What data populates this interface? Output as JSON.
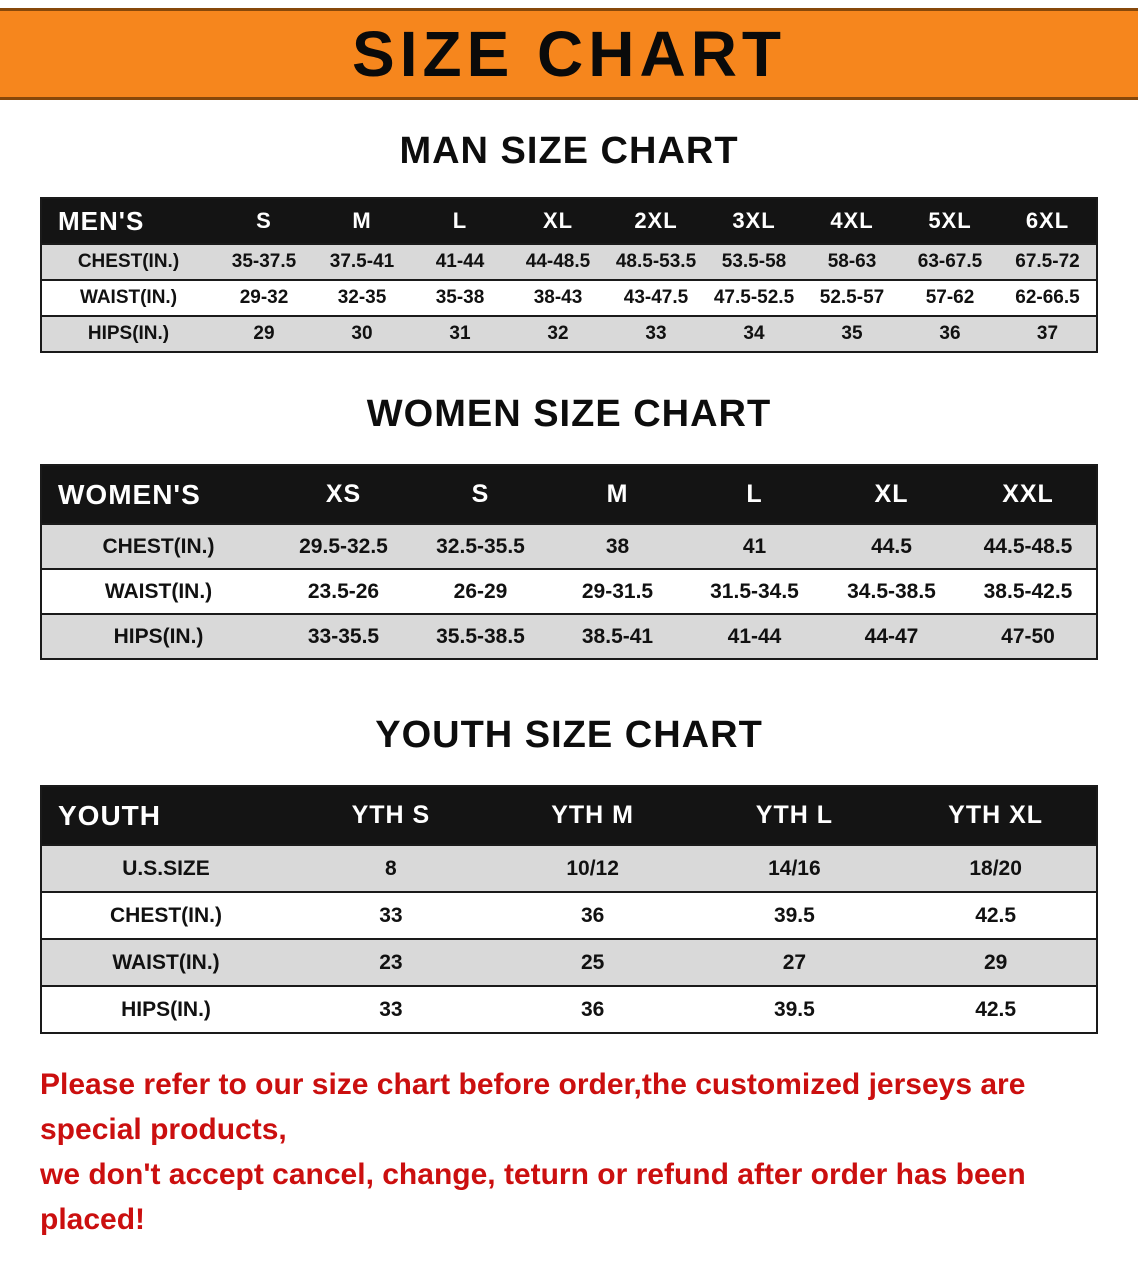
{
  "banner": {
    "title": "SIZE CHART"
  },
  "colors": {
    "banner_bg": "#f6861d",
    "table_header_bg": "#141414",
    "row_alt_bg": "#d9d9d9",
    "disclaimer_text": "#cb0f0f"
  },
  "sections": [
    {
      "heading": "MAN SIZE CHART",
      "table": {
        "header": [
          "MEN'S",
          "S",
          "M",
          "L",
          "XL",
          "2XL",
          "3XL",
          "4XL",
          "5XL",
          "6XL"
        ],
        "rows": [
          [
            "CHEST(IN.)",
            "35-37.5",
            "37.5-41",
            "41-44",
            "44-48.5",
            "48.5-53.5",
            "53.5-58",
            "58-63",
            "63-67.5",
            "67.5-72"
          ],
          [
            "WAIST(IN.)",
            "29-32",
            "32-35",
            "35-38",
            "38-43",
            "43-47.5",
            "47.5-52.5",
            "52.5-57",
            "57-62",
            "62-66.5"
          ],
          [
            "HIPS(IN.)",
            "29",
            "30",
            "31",
            "32",
            "33",
            "34",
            "35",
            "36",
            "37"
          ]
        ]
      }
    },
    {
      "heading": "WOMEN SIZE CHART",
      "table": {
        "header": [
          "WOMEN'S",
          "XS",
          "S",
          "M",
          "L",
          "XL",
          "XXL"
        ],
        "rows": [
          [
            "CHEST(IN.)",
            "29.5-32.5",
            "32.5-35.5",
            "38",
            "41",
            "44.5",
            "44.5-48.5"
          ],
          [
            "WAIST(IN.)",
            "23.5-26",
            "26-29",
            "29-31.5",
            "31.5-34.5",
            "34.5-38.5",
            "38.5-42.5"
          ],
          [
            "HIPS(IN.)",
            "33-35.5",
            "35.5-38.5",
            "38.5-41",
            "41-44",
            "44-47",
            "47-50"
          ]
        ]
      }
    },
    {
      "heading": "YOUTH SIZE CHART",
      "table": {
        "header": [
          "YOUTH",
          "YTH S",
          "YTH M",
          "YTH L",
          "YTH XL"
        ],
        "rows": [
          [
            "U.S.SIZE",
            "8",
            "10/12",
            "14/16",
            "18/20"
          ],
          [
            "CHEST(IN.)",
            "33",
            "36",
            "39.5",
            "42.5"
          ],
          [
            "WAIST(IN.)",
            "23",
            "25",
            "27",
            "29"
          ],
          [
            "HIPS(IN.)",
            "33",
            "36",
            "39.5",
            "42.5"
          ]
        ]
      }
    }
  ],
  "disclaimer": {
    "line1": "Please refer to our size chart before order,the customized jerseys are special products,",
    "line2": "we don't accept cancel, change, teturn or refund after order has been placed!"
  }
}
